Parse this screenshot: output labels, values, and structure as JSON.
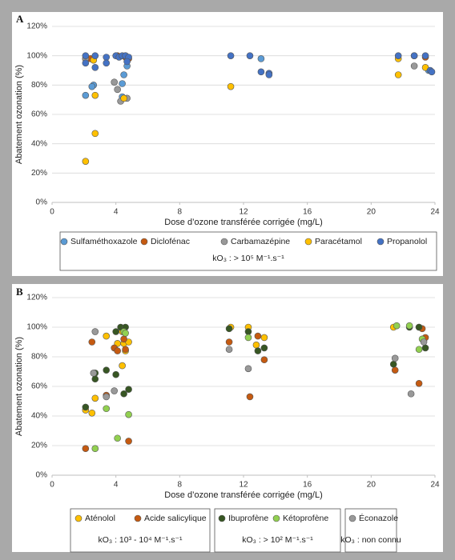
{
  "chart_data": [
    {
      "type": "scatter",
      "panel_label": "A",
      "x_label": "Dose d’ozone transférée corrigée (mg/L)",
      "y_label": "Abatement ozonation (%)",
      "xlim": [
        0,
        24
      ],
      "xticks": [
        0,
        4,
        8,
        12,
        16,
        20,
        24
      ],
      "ylim": [
        0,
        120
      ],
      "yticks": [
        {
          "value": 0,
          "label": "0%"
        },
        {
          "value": 20,
          "label": "20%"
        },
        {
          "value": 40,
          "label": "40%"
        },
        {
          "value": 60,
          "label": "60%"
        },
        {
          "value": 80,
          "label": "80%"
        },
        {
          "value": 100,
          "label": "100%"
        },
        {
          "value": 120,
          "label": "120%"
        }
      ],
      "grid": true,
      "legend_notes": [
        "kO₃ : > 10⁵ M⁻¹.s⁻¹"
      ],
      "series": [
        {
          "name": "Sulfaméthoxazole",
          "color": "#5b9bd5",
          "x": [
            2.1,
            2.6,
            2.5,
            4.4,
            4.5,
            4.4,
            4.7,
            13.1,
            23.6
          ],
          "values": [
            73,
            80,
            79,
            72,
            87,
            81,
            93,
            98,
            90
          ]
        },
        {
          "name": "Diclofénac",
          "color": "#c55a11",
          "x": [
            2.1,
            2.4,
            4.1,
            4.6,
            4.8,
            23.4,
            22.7
          ],
          "values": [
            98,
            98,
            100,
            99,
            98,
            99,
            100
          ]
        },
        {
          "name": "Carbamazépine",
          "color": "#999999",
          "x": [
            2.1,
            3.9,
            4.1,
            4.3,
            4.7,
            22.7
          ],
          "values": [
            98,
            82,
            77,
            69,
            71,
            93
          ]
        },
        {
          "name": "Paracétamol",
          "color": "#ffc000",
          "x": [
            2.1,
            2.7,
            2.7,
            4.5,
            11.2,
            21.7,
            23.4,
            2.6,
            21.7,
            4.6
          ],
          "values": [
            28,
            47,
            73,
            71,
            79,
            87,
            92,
            97,
            98,
            100
          ]
        },
        {
          "name": "Propanolol",
          "color": "#4472c4",
          "x": [
            2.1,
            2.7,
            3.4,
            4.0,
            4.2,
            4.4,
            4.6,
            4.8,
            4.7,
            2.1,
            2.7,
            3.4,
            11.2,
            12.4,
            13.1,
            13.6,
            13.6,
            21.7,
            22.7,
            23.4,
            23.7,
            23.8
          ],
          "values": [
            100,
            100,
            99,
            100,
            99,
            100,
            100,
            99,
            96,
            95,
            92,
            95,
            100,
            100,
            89,
            88,
            87,
            100,
            100,
            100,
            90,
            89
          ]
        }
      ]
    },
    {
      "type": "scatter",
      "panel_label": "B",
      "x_label": "Dose d’ozone transférée corrigée (mg/L)",
      "y_label": "Abatement ozonation (%)",
      "xlim": [
        0,
        24
      ],
      "xticks": [
        0,
        4,
        8,
        12,
        16,
        20,
        24
      ],
      "ylim": [
        0,
        120
      ],
      "yticks": [
        {
          "value": 0,
          "label": "0%"
        },
        {
          "value": 20,
          "label": "20%"
        },
        {
          "value": 40,
          "label": "40%"
        },
        {
          "value": 60,
          "label": "60%"
        },
        {
          "value": 80,
          "label": "80%"
        },
        {
          "value": 100,
          "label": "100%"
        },
        {
          "value": 120,
          "label": "120%"
        }
      ],
      "grid": true,
      "legend_notes": [
        "kO₃ : 10³  - 10⁴ M⁻¹.s⁻¹",
        "kO₃ : > 10² M⁻¹.s⁻¹",
        "kO₃ : non connu"
      ],
      "series": [
        {
          "name": "Aténolol",
          "color": "#ffc000",
          "x": [
            2.1,
            2.5,
            2.7,
            3.4,
            4.1,
            4.4,
            4.5,
            4.4,
            4.6,
            4.8,
            11.2,
            12.3,
            12.8,
            13.3,
            21.4,
            23.0
          ],
          "values": [
            44,
            42,
            52,
            94,
            89,
            97,
            89,
            74,
            84,
            90,
            100,
            100,
            88,
            93,
            100,
            100
          ]
        },
        {
          "name": "Acide salicylique",
          "color": "#c55a11",
          "x": [
            2.1,
            2.5,
            3.4,
            3.9,
            4.1,
            4.5,
            4.6,
            4.8,
            11.1,
            12.4,
            12.9,
            13.3,
            21.5,
            23.0,
            23.4,
            23.2
          ],
          "values": [
            18,
            90,
            54,
            86,
            84,
            92,
            85,
            23,
            90,
            53,
            94,
            78,
            71,
            62,
            93,
            99
          ]
        },
        {
          "name": "Ibuprofène",
          "color": "#375623",
          "x": [
            2.1,
            2.7,
            2.7,
            3.4,
            4.0,
            4.0,
            4.3,
            4.6,
            4.5,
            4.8,
            11.1,
            12.3,
            12.9,
            13.3,
            21.4,
            22.4,
            23.0,
            23.4
          ],
          "values": [
            46,
            69,
            65,
            71,
            68,
            97,
            100,
            100,
            55,
            58,
            99,
            97,
            84,
            86,
            75,
            100,
            100,
            86
          ]
        },
        {
          "name": "Kétoprofène",
          "color": "#92d050",
          "x": [
            2.7,
            3.4,
            4.1,
            4.5,
            4.6,
            4.8,
            12.3,
            21.6,
            22.4,
            23.0,
            23.2
          ],
          "values": [
            18,
            45,
            25,
            97,
            96,
            41,
            93,
            101,
            101,
            85,
            92
          ]
        },
        {
          "name": "Éconazole",
          "color": "#999999",
          "x": [
            2.6,
            2.7,
            3.4,
            3.9,
            11.1,
            12.3,
            21.5,
            22.5,
            23.3
          ],
          "values": [
            69,
            97,
            53,
            57,
            85,
            72,
            79,
            55,
            90
          ]
        }
      ]
    }
  ]
}
